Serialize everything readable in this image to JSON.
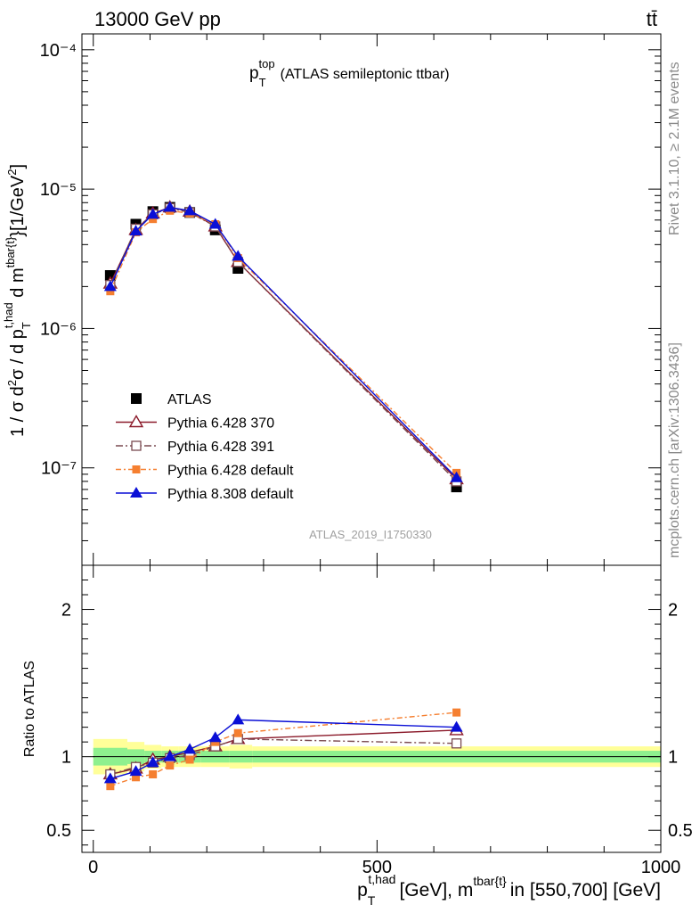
{
  "header": {
    "energy_label": "13000 GeV pp",
    "process_label": "tt̄"
  },
  "side_labels": {
    "rivet": "Rivet 3.1.10, ≥ 2.1M events",
    "mcplots": "mcplots.cern.ch [arXiv:1306.3436]"
  },
  "watermark": "ATLAS_2019_I1750330",
  "colors": {
    "ATLAS": "#000000",
    "Pythia 6.428 370": "#8b1a2a",
    "Pythia 6.428 391": "#7a4a50",
    "Pythia 6.428 default": "#f57f30",
    "Pythia 8.308 default": "#0a0fd6",
    "band_inner": "#8ef08e",
    "band_outer": "#ffff99"
  },
  "chart_data": [
    {
      "type": "line",
      "panel": "main",
      "title": "p_T^top (ATLAS semileptonic ttbar)",
      "title_main": "p",
      "title_sub": "T",
      "title_sup": "top",
      "title_rest": "(ATLAS semileptonic ttbar)",
      "ylabel": "1 / σ d²σ / d p_T^t,had d m^tbar{t} [1/GeV²]",
      "yscale": "log",
      "ylim": [
        2e-08,
        0.00013
      ],
      "xlim": [
        -20,
        1000
      ],
      "y_tick_labels": [
        "10⁻⁴",
        "10⁻⁵",
        "10⁻⁶",
        "10⁻⁷"
      ],
      "legend_position": "lower-left",
      "x": [
        30,
        75,
        105,
        135,
        170,
        215,
        255,
        640
      ],
      "series": [
        {
          "name": "ATLAS",
          "marker": "square-filled",
          "values": [
            2.4e-06,
            5.6e-06,
            6.9e-06,
            7.4e-06,
            6.8e-06,
            5.1e-06,
            2.7e-06,
            7.3e-08
          ]
        },
        {
          "name": "Pythia 6.428 370",
          "marker": "triangle-open",
          "values": [
            2.1e-06,
            5.1e-06,
            6.7e-06,
            7.4e-06,
            6.9e-06,
            5.4e-06,
            3e-06,
            8.3e-08
          ]
        },
        {
          "name": "Pythia 6.428 391",
          "marker": "square-open",
          "values": [
            2.05e-06,
            5.2e-06,
            6.6e-06,
            7.3e-06,
            6.8e-06,
            5.4e-06,
            3e-06,
            8e-08
          ]
        },
        {
          "name": "Pythia 6.428 default",
          "marker": "square-filled-small",
          "values": [
            1.85e-06,
            4.9e-06,
            6.1e-06,
            7e-06,
            6.7e-06,
            5.6e-06,
            3.2e-06,
            9.2e-08
          ]
        },
        {
          "name": "Pythia 8.308 default",
          "marker": "triangle-filled",
          "values": [
            2e-06,
            5e-06,
            6.6e-06,
            7.4e-06,
            7e-06,
            5.6e-06,
            3.3e-06,
            8.5e-08
          ]
        }
      ]
    },
    {
      "type": "line",
      "panel": "ratio",
      "ylabel": "Ratio to ATLAS",
      "ylim": [
        0.35,
        2.3
      ],
      "xlim": [
        -20,
        1000
      ],
      "y_ticks": [
        0.5,
        1,
        2
      ],
      "y_tick_labels": [
        "0.5",
        "1",
        "2"
      ],
      "x_ticks": [
        0,
        500,
        1000
      ],
      "x_tick_labels": [
        "0",
        "500",
        "1000"
      ],
      "xlabel": "p_T^t,had [GeV], m^tbar{t} in [550,700] [GeV]",
      "xlabel_main": "p",
      "xlabel_sub": "T",
      "xlabel_sup": "t,had",
      "xlabel_mid": "[GeV], m",
      "xlabel_sup2": "tbar{t}",
      "xlabel_end": "in [550,700] [GeV]",
      "x": [
        30,
        75,
        105,
        135,
        170,
        215,
        255,
        640
      ],
      "uncertainty_band": {
        "edges": [
          0,
          60,
          90,
          120,
          150,
          190,
          240,
          280,
          1000
        ],
        "inner": [
          0.06,
          0.05,
          0.04,
          0.04,
          0.04,
          0.04,
          0.04,
          0.04
        ],
        "outer": [
          0.12,
          0.1,
          0.08,
          0.07,
          0.07,
          0.07,
          0.08,
          0.07
        ]
      },
      "series": [
        {
          "name": "Pythia 6.428 370",
          "values": [
            0.88,
            0.92,
            0.98,
            1.0,
            1.03,
            1.07,
            1.12,
            1.18
          ]
        },
        {
          "name": "Pythia 6.428 391",
          "values": [
            0.88,
            0.93,
            0.96,
            0.99,
            1.01,
            1.07,
            1.12,
            1.09
          ]
        },
        {
          "name": "Pythia 6.428 default",
          "values": [
            0.8,
            0.86,
            0.88,
            0.94,
            0.98,
            1.1,
            1.16,
            1.3
          ]
        },
        {
          "name": "Pythia 8.308 default",
          "values": [
            0.85,
            0.9,
            0.96,
            1.0,
            1.05,
            1.13,
            1.25,
            1.2
          ]
        }
      ]
    }
  ]
}
